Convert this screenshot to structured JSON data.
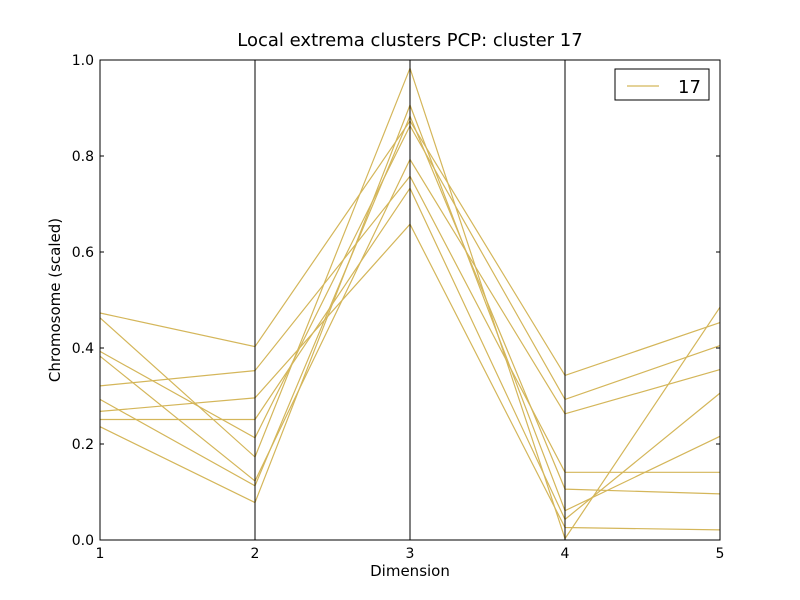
{
  "chart_data": {
    "type": "line",
    "subtype": "parallel-coordinates",
    "title": "Local extrema clusters PCP: cluster 17",
    "xlabel": "Dimension",
    "ylabel": "Chromosome (scaled)",
    "x": [
      1,
      2,
      3,
      4,
      5
    ],
    "xticks": [
      "1",
      "2",
      "3",
      "4",
      "5"
    ],
    "ylim": [
      0.0,
      1.0
    ],
    "yticks": [
      "0.0",
      "0.2",
      "0.4",
      "0.6",
      "0.8",
      "1.0"
    ],
    "grid": false,
    "legend": {
      "position": "top-right",
      "entries": [
        "17"
      ]
    },
    "line_color": "#d4b65a",
    "series": [
      {
        "values": [
          0.473,
          0.403,
          0.873,
          0.343,
          0.453
        ]
      },
      {
        "values": [
          0.463,
          0.173,
          0.983,
          0.003,
          0.485
        ]
      },
      {
        "values": [
          0.393,
          0.213,
          0.863,
          0.293,
          0.405
        ]
      },
      {
        "values": [
          0.383,
          0.123,
          0.793,
          0.263,
          0.355
        ]
      },
      {
        "values": [
          0.321,
          0.353,
          0.758,
          0.141,
          0.141
        ]
      },
      {
        "values": [
          0.293,
          0.113,
          0.883,
          0.106,
          0.096
        ]
      },
      {
        "values": [
          0.268,
          0.296,
          0.658,
          0.026,
          0.021
        ]
      },
      {
        "values": [
          0.251,
          0.251,
          0.733,
          0.043,
          0.306
        ]
      },
      {
        "values": [
          0.236,
          0.078,
          0.906,
          0.061,
          0.216
        ]
      }
    ]
  }
}
